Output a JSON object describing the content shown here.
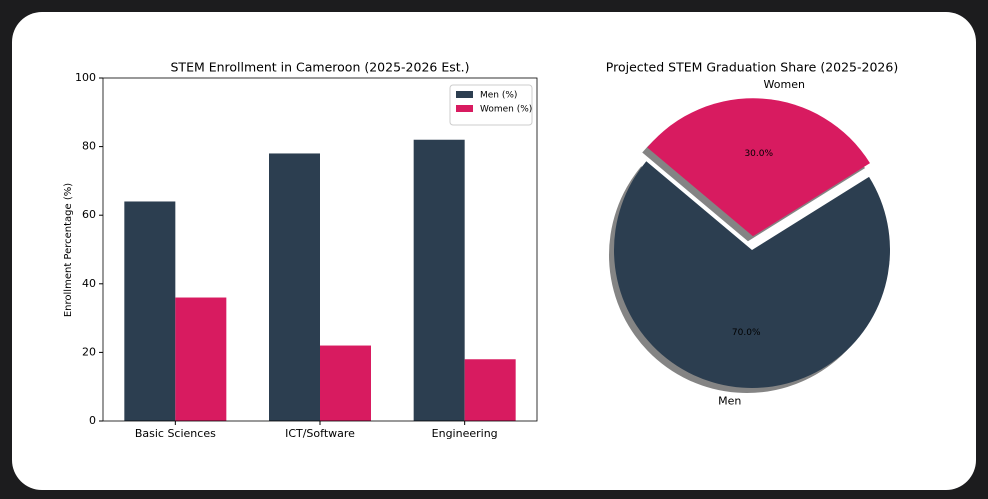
{
  "chart_data": [
    {
      "type": "bar",
      "title": "STEM Enrollment in Cameroon (2025-2026 Est.)",
      "ylabel": "Enrollment Percentage (%)",
      "categories": [
        "Basic Sciences",
        "ICT/Software",
        "Engineering"
      ],
      "series": [
        {
          "name": "Men (%)",
          "color": "#2c3e50",
          "values": [
            64,
            78,
            82
          ]
        },
        {
          "name": "Women (%)",
          "color": "#d81b60",
          "values": [
            36,
            22,
            18
          ]
        }
      ],
      "ylim": [
        0,
        100
      ],
      "yticks": [
        0,
        20,
        40,
        60,
        80,
        100
      ],
      "legend": "upper right"
    },
    {
      "type": "pie",
      "title": "Projected STEM Graduation Share (2025-2026)",
      "categories": [
        "Men",
        "Women"
      ],
      "values": [
        70,
        30
      ],
      "value_labels": [
        "70.0%",
        "30.0%"
      ],
      "colors": [
        "#2c3e50",
        "#d81b60"
      ],
      "explode": [
        0,
        0.1
      ],
      "startangle": 140,
      "shadow": true
    }
  ]
}
